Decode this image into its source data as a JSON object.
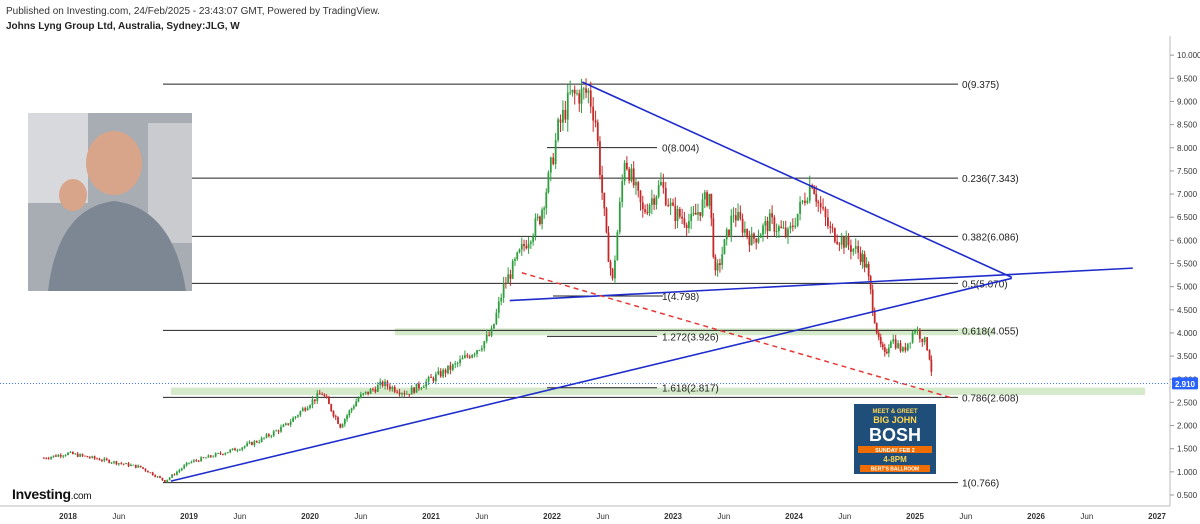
{
  "header": {
    "published": "Published on Investing.com, 24/Feb/2025 - 23:43:07 GMT, Powered by TradingView.",
    "symbol": "Johns Lyng Group Ltd, Australia, Sydney:JLG, W"
  },
  "logo": {
    "name": "Investing",
    "suffix": ".com"
  },
  "colors": {
    "candle_up": "#2e9e3e",
    "candle_down": "#c62828",
    "trendline": "#1f2ccc",
    "dashed": "#e53935",
    "zone": "#cfe8c4",
    "price_badge": "#2962ff"
  },
  "chart_data": {
    "type": "candlestick",
    "ylim": [
      0.3,
      10.3
    ],
    "yticks": [
      "0.500",
      "1.000",
      "1.500",
      "2.000",
      "2.500",
      "3.000",
      "3.500",
      "4.000",
      "4.500",
      "5.000",
      "5.500",
      "6.000",
      "6.500",
      "7.000",
      "7.500",
      "8.000",
      "8.500",
      "9.000",
      "9.500",
      "10.000"
    ],
    "xticks": [
      "2018",
      "Jun",
      "2019",
      "Jun",
      "2020",
      "Jun",
      "2021",
      "Jun",
      "2022",
      "Jun",
      "2023",
      "Jun",
      "2024",
      "Jun",
      "2025",
      "Jun",
      "2026",
      "Jun",
      "2027",
      "Jun"
    ],
    "last_price": "2.910",
    "series": [
      {
        "name": "weekly close",
        "x": [
          2017.8,
          2018.0,
          2018.2,
          2018.4,
          2018.6,
          2018.8,
          2018.9,
          2019.0,
          2019.2,
          2019.4,
          2019.6,
          2019.8,
          2020.0,
          2020.1,
          2020.25,
          2020.4,
          2020.6,
          2020.8,
          2021.0,
          2021.2,
          2021.4,
          2021.5,
          2021.6,
          2021.75,
          2021.9,
          2021.97,
          2022.05,
          2022.15,
          2022.3,
          2022.36,
          2022.45,
          2022.5,
          2022.6,
          2022.75,
          2022.9,
          2023.0,
          2023.15,
          2023.3,
          2023.35,
          2023.5,
          2023.65,
          2023.8,
          2023.95,
          2024.05,
          2024.15,
          2024.2,
          2024.3,
          2024.45,
          2024.55,
          2024.6,
          2024.65,
          2024.7,
          2024.75,
          2024.8,
          2024.9,
          2025.0,
          2025.06,
          2025.1,
          2025.12,
          2025.15
        ],
        "y": [
          1.3,
          1.4,
          1.3,
          1.2,
          1.1,
          0.8,
          1.0,
          1.2,
          1.35,
          1.5,
          1.7,
          2.0,
          2.5,
          2.7,
          2.0,
          2.6,
          2.9,
          2.7,
          3.0,
          3.3,
          3.7,
          4.0,
          5.0,
          5.8,
          6.5,
          7.3,
          8.4,
          9.1,
          9.2,
          8.6,
          6.0,
          5.1,
          7.8,
          6.6,
          7.2,
          6.6,
          6.4,
          7.0,
          5.2,
          6.6,
          6.0,
          6.4,
          6.1,
          6.7,
          7.3,
          6.8,
          6.2,
          5.9,
          5.7,
          5.4,
          4.6,
          3.8,
          3.5,
          3.9,
          3.6,
          4.1,
          3.9,
          3.7,
          3.5,
          2.91
        ]
      }
    ],
    "fibonacci": [
      {
        "label": "0(9.375)",
        "value": 9.375
      },
      {
        "label": "0.236(7.343)",
        "value": 7.343
      },
      {
        "label": "0.382(6.086)",
        "value": 6.086
      },
      {
        "label": "0.5(5.070)",
        "value": 5.07
      },
      {
        "label": "0.618(4.055)",
        "value": 4.055
      },
      {
        "label": "0.786(2.608)",
        "value": 2.608
      },
      {
        "label": "1(0.766)",
        "value": 0.766
      }
    ],
    "fibonacci_inner": [
      {
        "label": "0(8.004)",
        "value": 8.004
      },
      {
        "label": "1(4.798)",
        "value": 4.798
      },
      {
        "label": "1.272(3.926)",
        "value": 3.926
      },
      {
        "label": "1.618(2.817)",
        "value": 2.817
      }
    ],
    "trendlines": [
      {
        "from": [
          2022.25,
          9.42
        ],
        "to": [
          2025.8,
          5.2
        ]
      },
      {
        "from": [
          2018.85,
          0.8
        ],
        "to": [
          2025.8,
          5.18
        ]
      },
      {
        "from": [
          2021.65,
          4.7
        ],
        "to": [
          2026.8,
          5.4
        ]
      }
    ],
    "dashed_trendline": {
      "from": [
        2021.75,
        5.3
      ],
      "to": [
        2025.3,
        2.6
      ]
    },
    "zones": [
      {
        "y": [
          3.95,
          4.1
        ],
        "x": [
          2020.7,
          2025.65
        ]
      },
      {
        "y": [
          2.66,
          2.82
        ],
        "x": [
          2018.85,
          2026.9
        ]
      }
    ]
  },
  "promo": {
    "line1": "MEET & GREET",
    "line2": "BIG JOHN",
    "line3": "BOSH",
    "line4": "SUNDAY FEB 2",
    "line5": "4-8PM",
    "line6": "BERT'S BALLROOM"
  }
}
